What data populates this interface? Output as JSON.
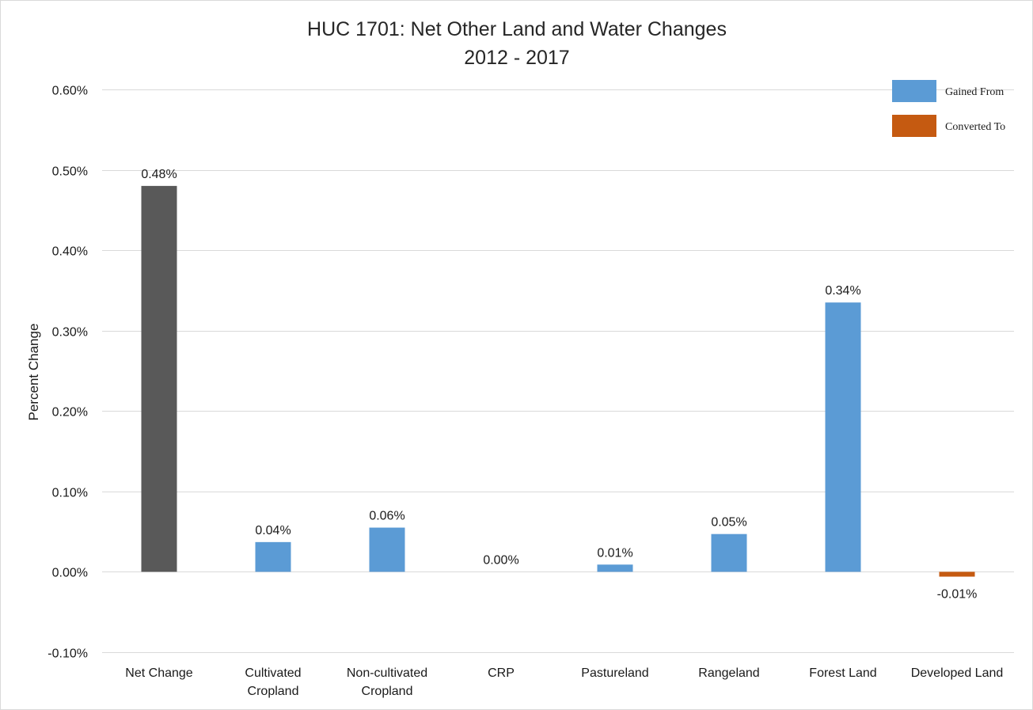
{
  "chart_data": {
    "type": "bar",
    "title": "HUC 1701: Net Other Land and Water Changes",
    "subtitle": "2012 - 2017",
    "xlabel": "",
    "ylabel": "Percent Change",
    "ylim": [
      -0.1,
      0.6
    ],
    "yticks": [
      -0.1,
      0.0,
      0.1,
      0.2,
      0.3,
      0.4,
      0.5,
      0.6
    ],
    "ytick_labels": [
      "-0.10%",
      "0.00%",
      "0.10%",
      "0.20%",
      "0.30%",
      "0.40%",
      "0.50%",
      "0.60%"
    ],
    "grid": true,
    "legend_position": "top-right",
    "categories": [
      [
        "Net Change"
      ],
      [
        "Cultivated",
        "Cropland"
      ],
      [
        "Non-cultivated",
        "Cropland"
      ],
      [
        "CRP"
      ],
      [
        "Pastureland"
      ],
      [
        "Rangeland"
      ],
      [
        "Forest Land"
      ],
      [
        "Developed Land"
      ]
    ],
    "values": [
      0.48,
      0.037,
      0.055,
      0.0,
      0.009,
      0.047,
      0.335,
      -0.006
    ],
    "data_labels": [
      "0.48%",
      "0.04%",
      "0.06%",
      "0.00%",
      "0.01%",
      "0.05%",
      "0.34%",
      "-0.01%"
    ],
    "bar_series": [
      "net",
      "gained",
      "gained",
      "gained",
      "gained",
      "gained",
      "gained",
      "converted"
    ],
    "legend": [
      {
        "key": "gained",
        "label": "Gained From",
        "color": "#5b9bd5"
      },
      {
        "key": "converted",
        "label": "Converted To",
        "color": "#c55a11"
      }
    ],
    "colors": {
      "net": "#595959",
      "gained": "#5b9bd5",
      "converted": "#c55a11",
      "grid": "#d9d9d9"
    }
  }
}
